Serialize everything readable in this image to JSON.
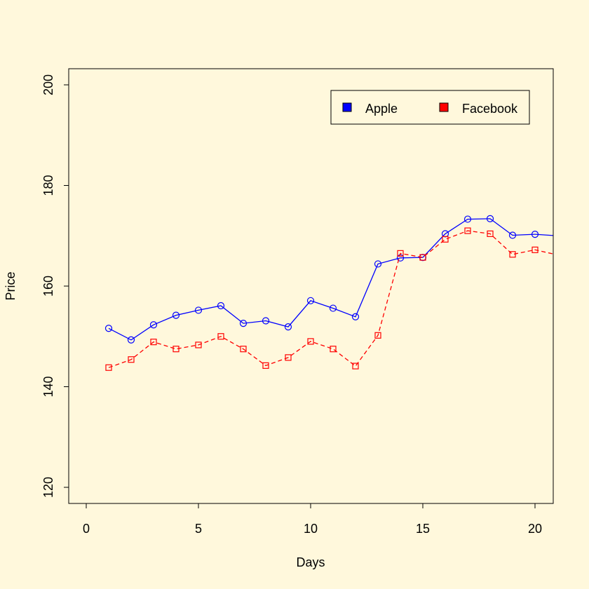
{
  "chart_data": {
    "type": "line",
    "title": "",
    "xlabel": "Days",
    "ylabel": "Price",
    "xlim": [
      0,
      21
    ],
    "ylim": [
      120,
      200
    ],
    "xticks": [
      0,
      5,
      10,
      15,
      20
    ],
    "yticks": [
      120,
      140,
      160,
      180,
      200
    ],
    "grid": false,
    "legend_position": "top-right",
    "x": [
      1,
      2,
      3,
      4,
      5,
      6,
      7,
      8,
      9,
      10,
      11,
      12,
      13,
      14,
      15,
      16,
      17,
      18,
      19,
      20,
      21
    ],
    "series": [
      {
        "name": "Apple",
        "color": "#0000ff",
        "line_style": "solid",
        "marker": "circle",
        "values": [
          151.6,
          149.3,
          152.3,
          154.2,
          155.2,
          156.1,
          152.6,
          153.1,
          151.9,
          157.1,
          155.6,
          153.9,
          164.4,
          165.6,
          165.7,
          170.4,
          173.3,
          173.4,
          170.1,
          170.3,
          170.0
        ]
      },
      {
        "name": "Facebook",
        "color": "#ff0000",
        "line_style": "dashed",
        "marker": "square",
        "values": [
          143.8,
          145.4,
          148.9,
          147.5,
          148.3,
          150.0,
          147.5,
          144.2,
          145.8,
          149.0,
          147.5,
          144.1,
          150.2,
          166.5,
          165.7,
          169.3,
          171.0,
          170.4,
          166.3,
          167.2,
          166.2
        ]
      }
    ]
  }
}
